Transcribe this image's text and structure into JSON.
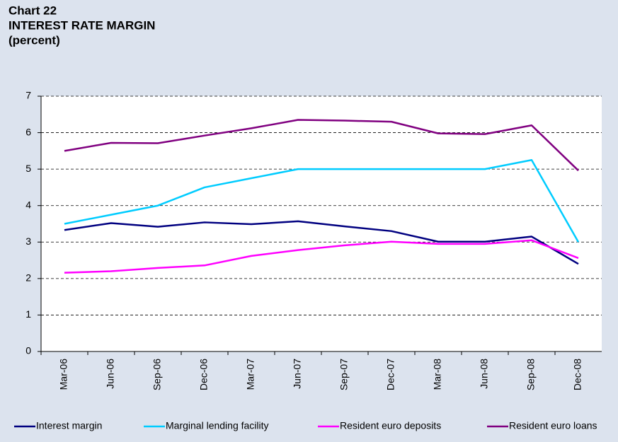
{
  "chart_data": {
    "type": "line",
    "title": "Chart 22",
    "subtitle": "INTEREST RATE MARGIN",
    "unit_label": "(percent)",
    "categories": [
      "Mar-06",
      "Jun-06",
      "Sep-06",
      "Dec-06",
      "Mar-07",
      "Jun-07",
      "Sep-07",
      "Dec-07",
      "Mar-08",
      "Jun-08",
      "Sep-08",
      "Dec-08"
    ],
    "series": [
      {
        "name": "Interest margin",
        "color": "#000080",
        "values": [
          3.33,
          3.52,
          3.42,
          3.54,
          3.49,
          3.57,
          3.43,
          3.3,
          3.01,
          3.01,
          3.15,
          2.4
        ]
      },
      {
        "name": "Marginal lending facility",
        "color": "#00ccff",
        "values": [
          3.5,
          3.75,
          4.0,
          4.5,
          4.75,
          5.0,
          5.0,
          5.0,
          5.0,
          5.0,
          5.25,
          3.0
        ]
      },
      {
        "name": "Resident euro deposits",
        "color": "#ff00ff",
        "values": [
          2.16,
          2.2,
          2.29,
          2.36,
          2.62,
          2.78,
          2.91,
          3.01,
          2.95,
          2.95,
          3.05,
          2.56
        ]
      },
      {
        "name": "Resident euro loans",
        "color": "#800080",
        "values": [
          5.5,
          5.72,
          5.71,
          5.92,
          6.12,
          6.35,
          6.33,
          6.3,
          5.98,
          5.96,
          6.2,
          4.96
        ]
      }
    ],
    "ylim": [
      0,
      7
    ],
    "yticks": [
      0,
      1,
      2,
      3,
      4,
      5,
      6,
      7
    ],
    "grid": true,
    "legend": "bottom"
  }
}
